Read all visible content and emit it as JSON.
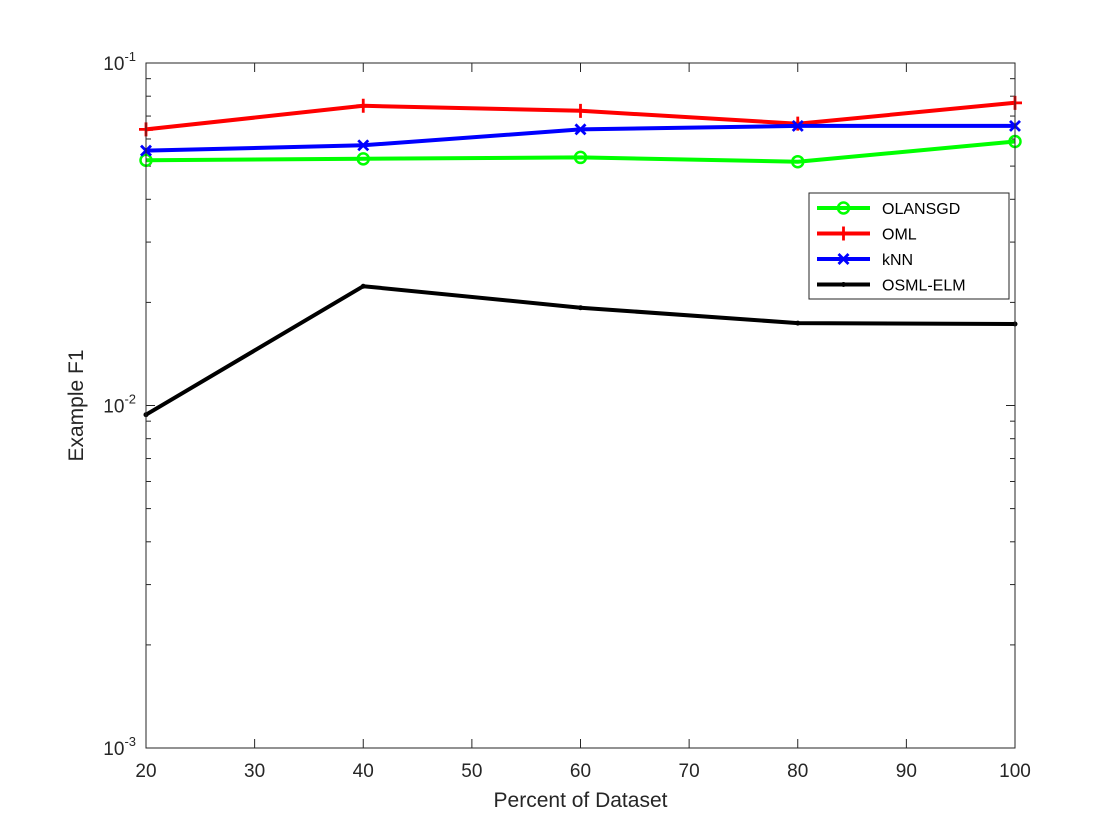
{
  "chart_data": {
    "type": "line",
    "title": "",
    "xlabel": "Percent of Dataset",
    "ylabel": "Example F1",
    "yscale": "log",
    "xlim": [
      20,
      100
    ],
    "ylim": [
      0.001,
      0.1
    ],
    "x": [
      20,
      40,
      60,
      80,
      100
    ],
    "xticks": [
      20,
      30,
      40,
      50,
      60,
      70,
      80,
      90,
      100
    ],
    "xtick_labels": [
      "20",
      "30",
      "40",
      "50",
      "60",
      "70",
      "80",
      "90",
      "100"
    ],
    "yticks": [
      {
        "value": 0.1,
        "base": "10",
        "exp": "-1"
      },
      {
        "value": 0.01,
        "base": "10",
        "exp": "-2"
      },
      {
        "value": 0.001,
        "base": "10",
        "exp": "-3"
      }
    ],
    "grid": false,
    "legend_position": "top-right",
    "series": [
      {
        "name": "OLANSGD",
        "color": "#00ff00",
        "marker": "circle",
        "values": [
          0.052,
          0.0525,
          0.053,
          0.0515,
          0.059
        ]
      },
      {
        "name": "OML",
        "color": "#ff0000",
        "marker": "plus",
        "values": [
          0.064,
          0.075,
          0.0725,
          0.0665,
          0.0765
        ]
      },
      {
        "name": "kNN",
        "color": "#0000ff",
        "marker": "x",
        "values": [
          0.0555,
          0.0575,
          0.064,
          0.0655,
          0.0655
        ]
      },
      {
        "name": "OSML-ELM",
        "color": "#000000",
        "marker": "point",
        "values": [
          0.0094,
          0.0223,
          0.0193,
          0.0174,
          0.0173
        ]
      }
    ]
  }
}
